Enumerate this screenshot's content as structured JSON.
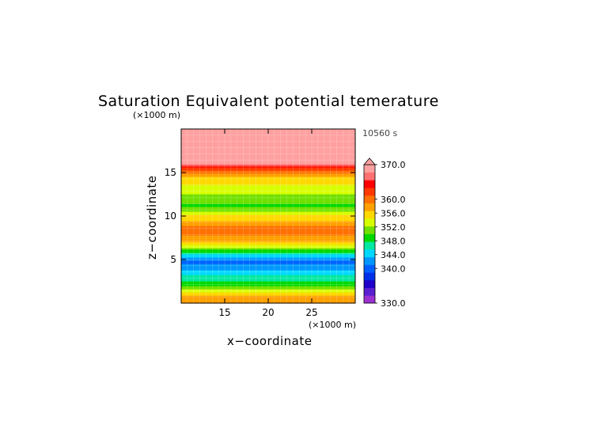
{
  "chart_data": {
    "type": "heatmap",
    "title": "Saturation Equivalent potential temerature",
    "time_label": "10560 s",
    "x_axis": {
      "label": "x−coordinate",
      "unit_label": "(×1000 m)",
      "range": [
        10,
        30
      ],
      "ticks": [
        15,
        20,
        25
      ],
      "tick_labels": [
        "15",
        "20",
        "25"
      ]
    },
    "y_axis": {
      "label": "z−coordinate",
      "unit_label": "(×1000 m)",
      "range": [
        0,
        20
      ],
      "ticks": [
        5,
        10,
        15
      ],
      "tick_labels": [
        "5",
        "10",
        "15"
      ]
    },
    "colorbar": {
      "min": 330,
      "max": 370,
      "extend": "max",
      "labels": [
        "370.0",
        "360.0",
        "356.0",
        "352.0",
        "348.0",
        "344.0",
        "340.0",
        "330.0"
      ],
      "label_values": [
        370,
        360,
        356,
        352,
        348,
        344,
        340,
        330
      ],
      "colors": [
        "#9b30d0",
        "#5a1fd0",
        "#1f00c8",
        "#0030e8",
        "#0060ff",
        "#0098ff",
        "#00d8ff",
        "#00e8a0",
        "#00d800",
        "#70e000",
        "#d8ff00",
        "#ffd800",
        "#ffa000",
        "#ff7000",
        "#ff3800",
        "#ff0000",
        "#ff7070",
        "#ffa0a0"
      ],
      "over_color": "#ffa0a0"
    },
    "profile": {
      "z": [
        0.0,
        0.5,
        0.9,
        1.2,
        1.6,
        2.0,
        2.6,
        3.0,
        3.5,
        4.2,
        4.8,
        5.2,
        5.8,
        6.3,
        6.8,
        7.5,
        8.2,
        8.8,
        9.4,
        10.0,
        10.6,
        11.2,
        11.8,
        12.4,
        13.0,
        13.6,
        14.2,
        14.8,
        15.2,
        15.6,
        16.0,
        17.0,
        20.0
      ],
      "theta_e": [
        357.5,
        358.5,
        356.5,
        354.5,
        352.0,
        349.5,
        347.5,
        346.5,
        345.0,
        342.0,
        340.0,
        343.0,
        347.0,
        351.0,
        355.5,
        358.0,
        360.0,
        359.0,
        357.0,
        355.0,
        352.0,
        349.5,
        351.0,
        352.0,
        353.5,
        354.5,
        355.5,
        358.0,
        361.0,
        362.0,
        368.0,
        372.0,
        372.0
      ]
    }
  }
}
